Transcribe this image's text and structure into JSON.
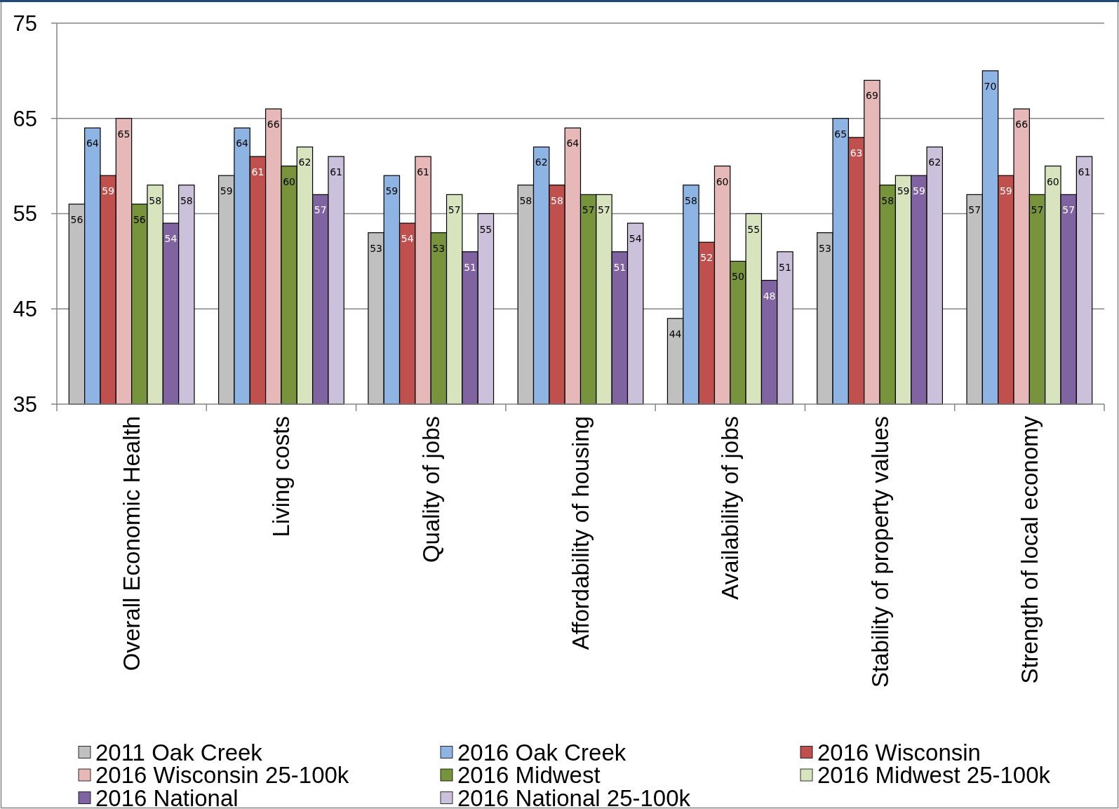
{
  "chart_data": {
    "type": "bar",
    "categories": [
      "Overall Economic Health",
      "Living costs",
      "Quality of jobs",
      "Affordability of housing",
      "Availability of jobs",
      "Stability of property values",
      "Strength of local economy"
    ],
    "series": [
      {
        "name": "2011 Oak Creek",
        "color": "#c0c0c0",
        "values": [
          56,
          59,
          53,
          58,
          44,
          53,
          57
        ]
      },
      {
        "name": "2016 Oak Creek",
        "color": "#8eb4e3",
        "values": [
          64,
          64,
          59,
          62,
          58,
          65,
          70
        ]
      },
      {
        "name": "2016 Wisconsin",
        "color": "#c0504d",
        "values": [
          59,
          61,
          54,
          58,
          52,
          63,
          59
        ]
      },
      {
        "name": "2016 Wisconsin 25-100k",
        "color": "#e6b9b8",
        "values": [
          65,
          66,
          61,
          64,
          60,
          69,
          66
        ]
      },
      {
        "name": "2016 Midwest",
        "color": "#77933c",
        "values": [
          56,
          60,
          53,
          57,
          50,
          58,
          57
        ]
      },
      {
        "name": "2016 Midwest 25-100k",
        "color": "#d7e4bd",
        "values": [
          58,
          62,
          57,
          57,
          55,
          59,
          60
        ]
      },
      {
        "name": "2016 National",
        "color": "#8064a2",
        "values": [
          54,
          57,
          51,
          51,
          48,
          59,
          57
        ]
      },
      {
        "name": "2016 National 25-100k",
        "color": "#ccc1da",
        "values": [
          58,
          61,
          55,
          54,
          51,
          62,
          61
        ]
      }
    ],
    "ylim": [
      35,
      75
    ],
    "yticks": [
      35,
      45,
      55,
      65,
      75
    ],
    "grid": "y",
    "legend": "bottom",
    "data_labels": true
  }
}
